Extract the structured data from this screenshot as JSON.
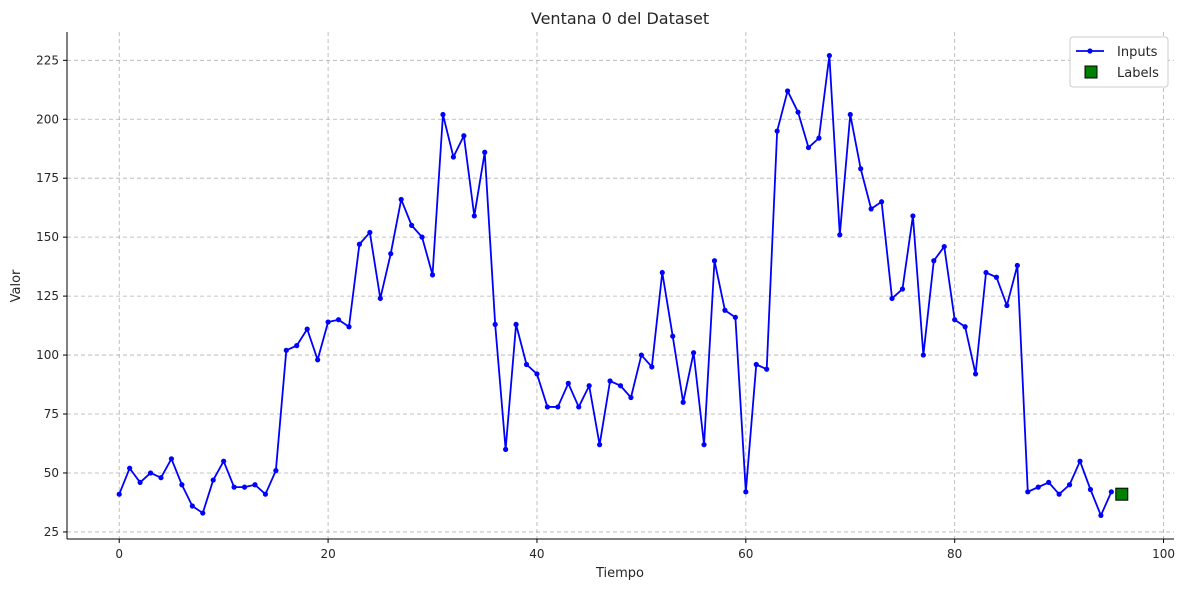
{
  "chart_data": {
    "type": "line",
    "title": "Ventana 0 del Dataset",
    "xlabel": "Tiempo",
    "ylabel": "Valor",
    "xlim": [
      -5,
      101
    ],
    "ylim": [
      22,
      237
    ],
    "xticks": [
      0,
      20,
      40,
      60,
      80,
      100
    ],
    "yticks": [
      25,
      50,
      75,
      100,
      125,
      150,
      175,
      200,
      225
    ],
    "grid": true,
    "legend_position": "top-right",
    "series": [
      {
        "name": "Inputs",
        "color": "#0000ff",
        "marker": "circle",
        "x": [
          0,
          1,
          2,
          3,
          4,
          5,
          6,
          7,
          8,
          9,
          10,
          11,
          12,
          13,
          14,
          15,
          16,
          17,
          18,
          19,
          20,
          21,
          22,
          23,
          24,
          25,
          26,
          27,
          28,
          29,
          30,
          31,
          32,
          33,
          34,
          35,
          36,
          37,
          38,
          39,
          40,
          41,
          42,
          43,
          44,
          45,
          46,
          47,
          48,
          49,
          50,
          51,
          52,
          53,
          54,
          55,
          56,
          57,
          58,
          59,
          60,
          61,
          62,
          63,
          64,
          65,
          66,
          67,
          68,
          69,
          70,
          71,
          72,
          73,
          74,
          75,
          76,
          77,
          78,
          79,
          80,
          81,
          82,
          83,
          84,
          85,
          86,
          87,
          88,
          89,
          90,
          91,
          92,
          93,
          94,
          95
        ],
        "values": [
          41,
          52,
          46,
          50,
          48,
          56,
          45,
          36,
          33,
          47,
          55,
          44,
          44,
          45,
          41,
          51,
          102,
          104,
          111,
          98,
          114,
          115,
          112,
          147,
          152,
          124,
          143,
          166,
          155,
          150,
          134,
          202,
          184,
          193,
          159,
          186,
          113,
          60,
          113,
          96,
          92,
          78,
          78,
          88,
          78,
          87,
          62,
          89,
          87,
          82,
          100,
          95,
          135,
          108,
          80,
          101,
          62,
          140,
          119,
          116,
          42,
          96,
          94,
          195,
          212,
          203,
          188,
          192,
          227,
          151,
          202,
          179,
          162,
          165,
          124,
          128,
          159,
          100,
          140,
          146,
          115,
          112,
          92,
          135,
          133,
          121,
          138,
          42,
          44,
          46,
          41,
          45,
          55,
          43,
          32,
          42
        ]
      },
      {
        "name": "Labels",
        "color": "#008000",
        "marker": "square",
        "x": [
          96
        ],
        "values": [
          41
        ]
      }
    ]
  }
}
